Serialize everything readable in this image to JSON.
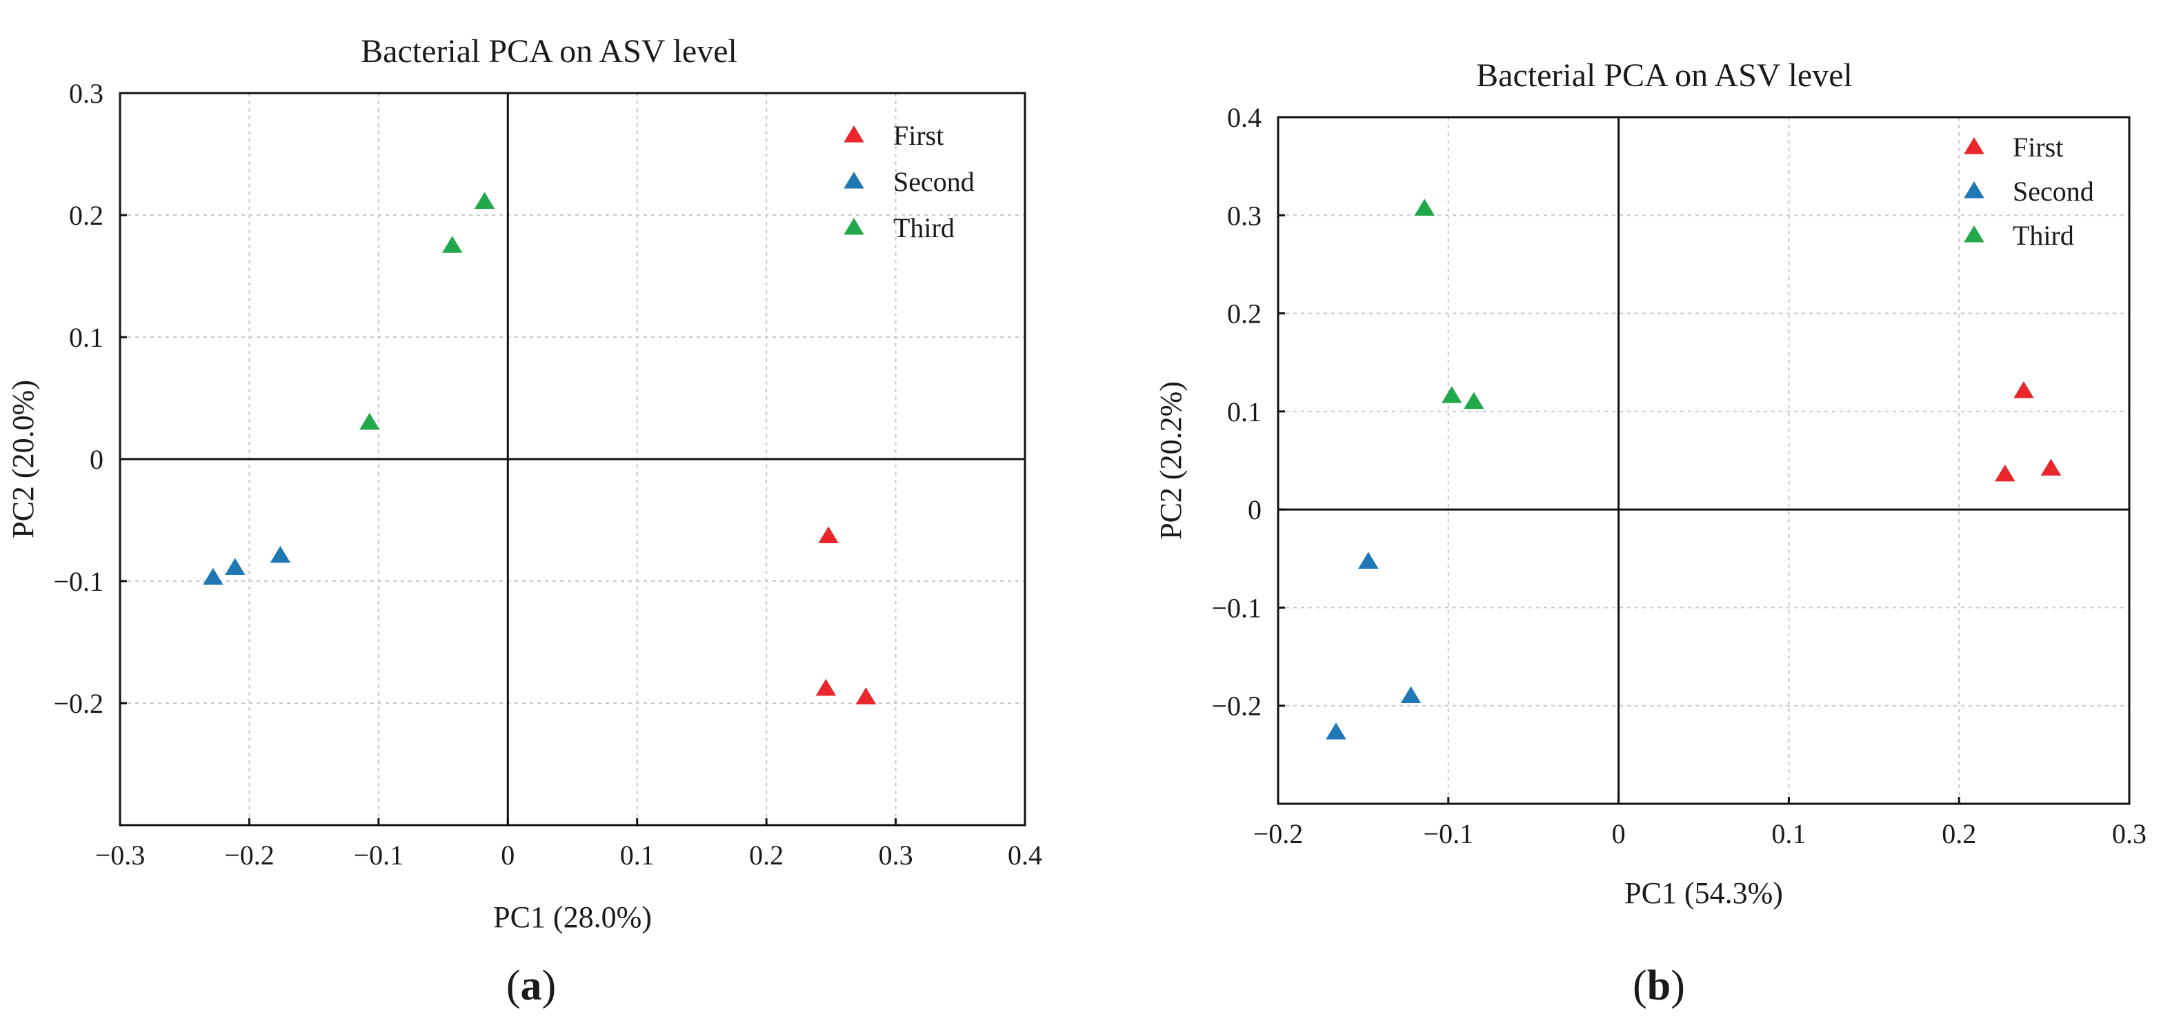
{
  "chart_data": [
    {
      "type": "scatter",
      "title": "Bacterial PCA on ASV level",
      "xlabel": "PC1 (28.0%)",
      "ylabel": "PC2 (20.0%)",
      "panel_label": "a",
      "xlim": [
        -0.3,
        0.4
      ],
      "ylim": [
        -0.3,
        0.3
      ],
      "xticks": [
        -0.3,
        -0.2,
        -0.1,
        0,
        0.1,
        0.2,
        0.3,
        0.4
      ],
      "yticks": [
        -0.2,
        -0.1,
        0,
        0.1,
        0.2,
        0.3
      ],
      "xtick_labels": [
        "−0.3",
        "−0.2",
        "−0.1",
        "0",
        "0.1",
        "0.2",
        "0.3",
        "0.4"
      ],
      "ytick_labels": [
        "−0.2",
        "−0.1",
        "0",
        "0.1",
        "0.2",
        "0.3"
      ],
      "grid": true,
      "legend_position": "top-right",
      "marker": "triangle-up",
      "series": [
        {
          "name": "First",
          "color": "#e8262b",
          "points": [
            {
              "x": 0.248,
              "y": -0.063
            },
            {
              "x": 0.246,
              "y": -0.188
            },
            {
              "x": 0.277,
              "y": -0.195
            }
          ]
        },
        {
          "name": "Second",
          "color": "#1f77b4",
          "points": [
            {
              "x": -0.228,
              "y": -0.097
            },
            {
              "x": -0.211,
              "y": -0.089
            },
            {
              "x": -0.176,
              "y": -0.079
            }
          ]
        },
        {
          "name": "Third",
          "color": "#20a84a",
          "points": [
            {
              "x": -0.107,
              "y": 0.03
            },
            {
              "x": -0.043,
              "y": 0.175
            },
            {
              "x": -0.018,
              "y": 0.211
            }
          ]
        }
      ]
    },
    {
      "type": "scatter",
      "title": "Bacterial PCA on ASV level",
      "xlabel": "PC1 (54.3%)",
      "ylabel": "PC2 (20.2%)",
      "panel_label": "b",
      "xlim": [
        -0.2,
        0.3
      ],
      "ylim": [
        -0.3,
        0.4
      ],
      "xticks": [
        -0.2,
        -0.1,
        0,
        0.1,
        0.2,
        0.3
      ],
      "yticks": [
        -0.2,
        -0.1,
        0,
        0.1,
        0.2,
        0.3,
        0.4
      ],
      "xtick_labels": [
        "−0.2",
        "−0.1",
        "0",
        "0.1",
        "0.2",
        "0.3"
      ],
      "ytick_labels": [
        "−0.2",
        "−0.1",
        "0",
        "0.1",
        "0.2",
        "0.3",
        "0.4"
      ],
      "grid": true,
      "legend_position": "top-right",
      "marker": "triangle-up",
      "series": [
        {
          "name": "First",
          "color": "#e8262b",
          "points": [
            {
              "x": 0.238,
              "y": 0.121
            },
            {
              "x": 0.227,
              "y": 0.036
            },
            {
              "x": 0.254,
              "y": 0.042
            }
          ]
        },
        {
          "name": "Second",
          "color": "#1f77b4",
          "points": [
            {
              "x": -0.147,
              "y": -0.053
            },
            {
              "x": -0.122,
              "y": -0.19
            },
            {
              "x": -0.166,
              "y": -0.227
            }
          ]
        },
        {
          "name": "Third",
          "color": "#20a84a",
          "points": [
            {
              "x": -0.114,
              "y": 0.307
            },
            {
              "x": -0.098,
              "y": 0.116
            },
            {
              "x": -0.085,
              "y": 0.11
            }
          ]
        }
      ]
    }
  ]
}
